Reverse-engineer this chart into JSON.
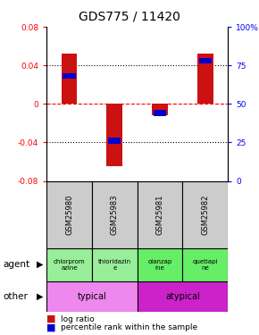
{
  "title": "GDS775 / 11420",
  "samples": [
    "GSM25980",
    "GSM25983",
    "GSM25981",
    "GSM25982"
  ],
  "log_ratios": [
    0.052,
    -0.065,
    -0.012,
    0.052
  ],
  "percentile_ranks": [
    0.68,
    0.26,
    0.44,
    0.78
  ],
  "ylim": [
    -0.08,
    0.08
  ],
  "yticks_left": [
    -0.08,
    -0.04,
    0,
    0.04,
    0.08
  ],
  "yticks_left_labels": [
    "-0.08",
    "-0.04",
    "0",
    "0.04",
    "0.08"
  ],
  "yticks_right": [
    0,
    25,
    50,
    75,
    100
  ],
  "yticks_right_labels": [
    "0",
    "25",
    "50",
    "75",
    "100%"
  ],
  "hlines_dotted": [
    0.04,
    -0.04
  ],
  "bar_color": "#cc1111",
  "percentile_color": "#0000cc",
  "background_color": "#ffffff",
  "sample_bg": "#cccccc",
  "agent_colors": [
    "#99ee99",
    "#99ee99",
    "#66ee66",
    "#66ee66"
  ],
  "other_colors": [
    "#ee88ee",
    "#cc22cc"
  ],
  "agent_labels": [
    "chlorprom\nazine",
    "thioridazin\ne",
    "olanzap\nine",
    "quetiapi\nne"
  ],
  "other_labels": [
    "typical",
    "atypical"
  ],
  "legend_items": [
    "log ratio",
    "percentile rank within the sample"
  ],
  "bar_width": 0.35
}
